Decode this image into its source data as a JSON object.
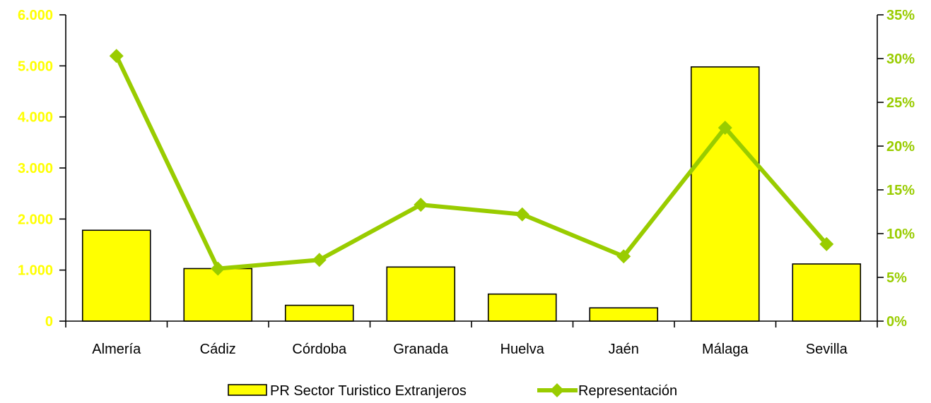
{
  "chart_data": {
    "type": "bar",
    "title": "",
    "categories": [
      "Almería",
      "Cádiz",
      "Córdoba",
      "Granada",
      "Huelva",
      "Jaén",
      "Málaga",
      "Sevilla"
    ],
    "series": [
      {
        "name": "PR Sector Turistico Extranjeros",
        "type": "bar",
        "axis": "left",
        "color": "#ffff00",
        "values": [
          1780,
          1030,
          310,
          1060,
          530,
          260,
          4980,
          1120
        ]
      },
      {
        "name": "Representación",
        "type": "line",
        "axis": "right",
        "color": "#99cc00",
        "marker": "diamond",
        "values": [
          0.303,
          0.06,
          0.07,
          0.133,
          0.122,
          0.074,
          0.221,
          0.088
        ]
      }
    ],
    "y_left": {
      "ylim": [
        0,
        6000
      ],
      "ticks": [
        0,
        1000,
        2000,
        3000,
        4000,
        5000,
        6000
      ],
      "tick_labels": [
        "0",
        "1.000",
        "2.000",
        "3.000",
        "4.000",
        "5.000",
        "6.000"
      ],
      "label_color": "#ffff00"
    },
    "y_right": {
      "ylim": [
        0,
        0.35
      ],
      "ticks": [
        0,
        0.05,
        0.1,
        0.15,
        0.2,
        0.25,
        0.3,
        0.35
      ],
      "tick_labels": [
        "0%",
        "5%",
        "10%",
        "15%",
        "20%",
        "25%",
        "30%",
        "35%"
      ],
      "label_color": "#99cc00"
    },
    "grid": false,
    "legend": "bottom"
  }
}
